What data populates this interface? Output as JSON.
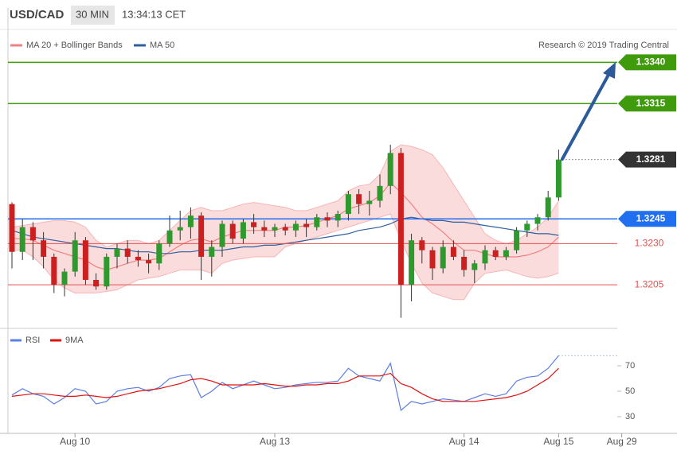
{
  "header": {
    "symbol": "USD/CAD",
    "timeframe": "30 MIN",
    "time": "13:34:13 CET",
    "credit": "Research © 2019 Trading Central"
  },
  "chart_data": [
    {
      "type": "candlestick",
      "ylim": [
        1.318,
        1.3373
      ],
      "up_color": "#2e9a2e",
      "down_color": "#cc2020",
      "open": [
        1.3254,
        1.3225,
        1.324,
        1.3232,
        1.3222,
        1.3205,
        1.3213,
        1.3232,
        1.3208,
        1.3204,
        1.3222,
        1.3227,
        1.3222,
        1.322,
        1.3218,
        1.323,
        1.3238,
        1.324,
        1.3247,
        1.3222,
        1.3228,
        1.3242,
        1.3233,
        1.3243,
        1.324,
        1.3238,
        1.324,
        1.3238,
        1.3242,
        1.324,
        1.3246,
        1.3244,
        1.3248,
        1.326,
        1.3254,
        1.3256,
        1.3265,
        1.3285,
        1.3205,
        1.3232,
        1.3226,
        1.3215,
        1.3228,
        1.3222,
        1.3214,
        1.3218,
        1.3226,
        1.3222,
        1.3226,
        1.3238,
        1.3242,
        1.3246,
        1.3258,
        null,
        null,
        null,
        null,
        null,
        null
      ],
      "high": [
        1.3255,
        1.3245,
        1.3243,
        1.3237,
        1.3224,
        1.3215,
        1.3237,
        1.3234,
        1.3212,
        1.3224,
        1.323,
        1.3232,
        1.3226,
        1.3224,
        1.3232,
        1.3247,
        1.325,
        1.3252,
        1.3249,
        1.3232,
        1.3244,
        1.3244,
        1.3245,
        1.3248,
        1.3244,
        1.3242,
        1.3242,
        1.3244,
        1.3245,
        1.3248,
        1.3249,
        1.325,
        1.3262,
        1.3263,
        1.3262,
        1.3272,
        1.329,
        1.3288,
        1.3236,
        1.3234,
        1.3228,
        1.3232,
        1.3232,
        1.3226,
        1.322,
        1.3229,
        1.3228,
        1.3228,
        1.324,
        1.3244,
        1.3248,
        1.3262,
        1.3287,
        null,
        null,
        null,
        null,
        null,
        null
      ],
      "low": [
        1.3215,
        1.322,
        1.322,
        1.3215,
        1.32,
        1.3198,
        1.321,
        1.3205,
        1.3202,
        1.3202,
        1.3215,
        1.3218,
        1.3216,
        1.3212,
        1.3214,
        1.3228,
        1.3232,
        1.3233,
        1.3208,
        1.321,
        1.3222,
        1.323,
        1.323,
        1.3236,
        1.3234,
        1.3234,
        1.3235,
        1.3234,
        1.3234,
        1.3238,
        1.324,
        1.324,
        1.3244,
        1.3248,
        1.3247,
        1.3252,
        1.326,
        1.3185,
        1.3195,
        1.3218,
        1.3208,
        1.3212,
        1.322,
        1.321,
        1.3206,
        1.3214,
        1.322,
        1.322,
        1.3224,
        1.3234,
        1.3238,
        1.3244,
        1.3256,
        null,
        null,
        null,
        null,
        null,
        null
      ],
      "close": [
        1.3225,
        1.324,
        1.3232,
        1.3222,
        1.3205,
        1.3213,
        1.3232,
        1.3208,
        1.3204,
        1.3222,
        1.3227,
        1.3222,
        1.322,
        1.3218,
        1.323,
        1.3238,
        1.324,
        1.3247,
        1.3222,
        1.3228,
        1.3242,
        1.3233,
        1.3243,
        1.324,
        1.3238,
        1.324,
        1.3238,
        1.3242,
        1.324,
        1.3246,
        1.3244,
        1.3248,
        1.326,
        1.3254,
        1.3256,
        1.3265,
        1.3285,
        1.3205,
        1.3232,
        1.3226,
        1.3215,
        1.3228,
        1.3222,
        1.3214,
        1.3218,
        1.3226,
        1.3222,
        1.3226,
        1.3238,
        1.3242,
        1.3246,
        1.3258,
        1.3281,
        null,
        null,
        null,
        null,
        null,
        null
      ],
      "series": [
        {
          "name": "MA 20 + Bollinger Bands",
          "color": "#f08080",
          "values": [
            1.3233,
            1.3233,
            1.3232,
            1.3229,
            1.3226,
            1.3224,
            1.3222,
            1.322,
            1.3216,
            1.3214,
            1.3216,
            1.3218,
            1.322,
            1.322,
            1.3221,
            1.3225,
            1.3229,
            1.3232,
            1.3233,
            1.3231,
            1.3234,
            1.3236,
            1.3238,
            1.3238,
            1.3238,
            1.3238,
            1.324,
            1.324,
            1.3241,
            1.3243,
            1.3245,
            1.3247,
            1.3251,
            1.3253,
            1.3255,
            1.3259,
            1.3267,
            1.3261,
            1.3254,
            1.3246,
            1.3242,
            1.3237,
            1.3231,
            1.3226,
            1.3226,
            1.3224,
            1.3222,
            1.3222,
            1.3222,
            1.3223,
            1.3225,
            1.3228,
            1.3234,
            null,
            null,
            null,
            null,
            null,
            null
          ],
          "upper": [
            1.324,
            1.3241,
            1.3242,
            1.3243,
            1.3244,
            1.3244,
            1.3243,
            1.324,
            1.3232,
            1.3228,
            1.323,
            1.3232,
            1.3232,
            1.323,
            1.3232,
            1.3238,
            1.3244,
            1.325,
            1.3252,
            1.325,
            1.325,
            1.3252,
            1.3254,
            1.3255,
            1.3254,
            1.3253,
            1.3252,
            1.325,
            1.325,
            1.3252,
            1.3254,
            1.3256,
            1.3262,
            1.3265,
            1.3266,
            1.3272,
            1.3286,
            1.329,
            1.3289,
            1.3287,
            1.3284,
            1.3276,
            1.3266,
            1.3256,
            1.3246,
            1.3236,
            1.3232,
            1.323,
            1.3232,
            1.3236,
            1.324,
            1.3246,
            1.3256,
            null,
            null,
            null,
            null,
            null,
            null
          ],
          "lower": [
            1.3226,
            1.3226,
            1.3222,
            1.3216,
            1.3208,
            1.3203,
            1.32,
            1.32,
            1.32,
            1.3201,
            1.3202,
            1.3205,
            1.3208,
            1.3209,
            1.321,
            1.3212,
            1.3214,
            1.3214,
            1.3214,
            1.3212,
            1.3218,
            1.322,
            1.3221,
            1.3222,
            1.3222,
            1.3222,
            1.3228,
            1.323,
            1.3232,
            1.3234,
            1.3236,
            1.3238,
            1.324,
            1.3242,
            1.3244,
            1.3246,
            1.3248,
            1.3232,
            1.3218,
            1.3206,
            1.32,
            1.3198,
            1.3196,
            1.3196,
            1.3206,
            1.3212,
            1.3213,
            1.3214,
            1.3212,
            1.321,
            1.3209,
            1.321,
            1.3212,
            null,
            null,
            null,
            null,
            null,
            null
          ]
        },
        {
          "name": "MA 50",
          "color": "#2f5f9e",
          "values": [
            1.3238,
            1.3236,
            1.3234,
            1.3233,
            1.3232,
            1.3231,
            1.323,
            1.3229,
            1.3228,
            1.3227,
            1.3227,
            1.3226,
            1.3225,
            1.3225,
            1.3224,
            1.3224,
            1.3225,
            1.3225,
            1.3226,
            1.3226,
            1.3226,
            1.3227,
            1.3228,
            1.3228,
            1.3229,
            1.3229,
            1.323,
            1.3231,
            1.3232,
            1.3233,
            1.3234,
            1.3235,
            1.3236,
            1.3238,
            1.3239,
            1.324,
            1.3242,
            1.3245,
            1.3246,
            1.3245,
            1.3244,
            1.3244,
            1.3243,
            1.3243,
            1.3242,
            1.3241,
            1.324,
            1.3239,
            1.3238,
            1.3237,
            1.3236,
            1.3236,
            1.3235,
            null,
            null,
            null,
            null,
            null,
            null
          ]
        }
      ],
      "levels": [
        {
          "value": 1.334,
          "label": "1.3340",
          "color": "#3f9a0c",
          "style": "box"
        },
        {
          "value": 1.3315,
          "color": "#3f9a0c",
          "style": "box"
        },
        {
          "value": 1.3281,
          "color": "#333333",
          "style": "last"
        },
        {
          "value": 1.3245,
          "color": "#1f6ff0",
          "style": "box"
        },
        {
          "value": 1.323,
          "label": "1.3230",
          "color": "#e05050",
          "style": "text"
        },
        {
          "value": 1.3205,
          "color": "#e05050",
          "style": "text"
        }
      ]
    },
    {
      "type": "line",
      "categories": [
        null,
        null,
        null,
        null,
        null,
        null,
        "Aug 10",
        null,
        null,
        null,
        null,
        null,
        null,
        null,
        null,
        null,
        null,
        null,
        null,
        null,
        null,
        null,
        null,
        null,
        null,
        "Aug 13",
        null,
        null,
        null,
        null,
        null,
        null,
        null,
        null,
        null,
        null,
        null,
        null,
        null,
        null,
        null,
        null,
        null,
        "Aug 14",
        null,
        null,
        null,
        null,
        null,
        null,
        null,
        null,
        "Aug 15",
        null,
        null,
        null,
        null,
        null,
        "Aug 29"
      ],
      "ylim": [
        20,
        95
      ],
      "yticks": [
        30,
        50,
        70
      ],
      "series": [
        {
          "name": "RSI",
          "color": "#5b7fe0",
          "values": [
            47,
            52,
            48,
            46,
            40,
            45,
            52,
            50,
            40,
            42,
            50,
            52,
            53,
            50,
            53,
            60,
            62,
            63,
            45,
            50,
            57,
            52,
            55,
            58,
            55,
            52,
            53,
            55,
            56,
            57,
            57,
            58,
            68,
            62,
            60,
            58,
            72,
            35,
            42,
            40,
            42,
            44,
            43,
            42,
            45,
            48,
            46,
            48,
            58,
            61,
            62,
            68,
            78,
            null,
            null,
            null,
            null,
            null,
            null
          ]
        },
        {
          "name": "9MA",
          "color": "#e01010",
          "values": [
            46,
            47,
            48,
            48,
            47,
            46,
            46,
            47,
            46,
            45,
            46,
            48,
            50,
            51,
            52,
            54,
            56,
            59,
            60,
            58,
            55,
            55,
            55,
            55,
            56,
            55,
            54,
            54,
            55,
            55,
            56,
            56,
            58,
            62,
            62,
            62,
            64,
            56,
            53,
            48,
            44,
            42,
            42,
            42,
            42,
            43,
            44,
            45,
            47,
            50,
            55,
            60,
            68,
            null,
            null,
            null,
            null,
            null,
            null
          ]
        }
      ]
    }
  ]
}
